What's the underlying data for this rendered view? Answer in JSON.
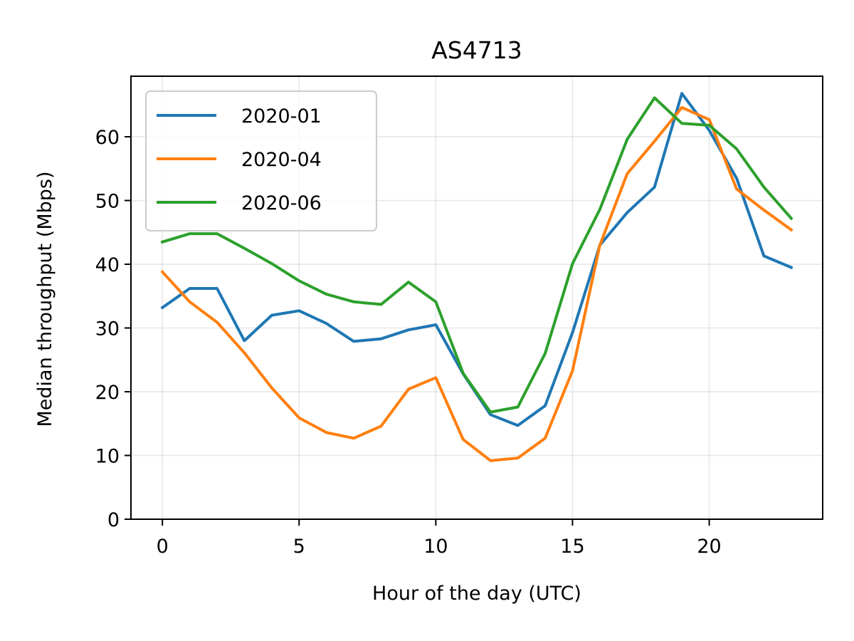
{
  "chart_data": {
    "type": "line",
    "title": "AS4713",
    "xlabel": "Hour of the day (UTC)",
    "ylabel": "Median throughput (Mbps)",
    "xlim": [
      -1.15,
      24.15
    ],
    "ylim": [
      0,
      69.5
    ],
    "xticks": [
      0,
      5,
      10,
      15,
      20
    ],
    "yticks": [
      0,
      10,
      20,
      30,
      40,
      50,
      60
    ],
    "grid": true,
    "legend_position": "upper-left",
    "x": [
      0,
      1,
      2,
      3,
      4,
      5,
      6,
      7,
      8,
      9,
      10,
      11,
      12,
      13,
      14,
      15,
      16,
      17,
      18,
      19,
      20,
      21,
      22,
      23
    ],
    "series": [
      {
        "name": "2020-01",
        "color": "#1f77b4",
        "values": [
          33.2,
          36.2,
          36.2,
          28.0,
          32.0,
          32.7,
          30.7,
          27.9,
          28.3,
          29.7,
          30.5,
          22.8,
          16.4,
          14.7,
          17.8,
          29.3,
          43.0,
          48.1,
          52.1,
          66.8,
          61.0,
          53.5,
          41.3,
          39.5
        ]
      },
      {
        "name": "2020-04",
        "color": "#ff7f0e",
        "values": [
          38.8,
          34.1,
          30.9,
          26.1,
          20.6,
          15.9,
          13.6,
          12.7,
          14.6,
          20.4,
          22.2,
          12.5,
          9.2,
          9.6,
          12.7,
          23.3,
          43.0,
          54.2,
          59.3,
          64.6,
          62.7,
          51.8,
          48.5,
          45.4
        ]
      },
      {
        "name": "2020-06",
        "color": "#2ca02c",
        "values": [
          43.5,
          44.8,
          44.8,
          42.5,
          40.1,
          37.4,
          35.3,
          34.1,
          33.7,
          37.2,
          34.1,
          22.9,
          16.8,
          17.6,
          26.0,
          40.1,
          48.6,
          59.6,
          66.1,
          62.1,
          61.8,
          58.1,
          52.1,
          47.2
        ]
      }
    ]
  }
}
